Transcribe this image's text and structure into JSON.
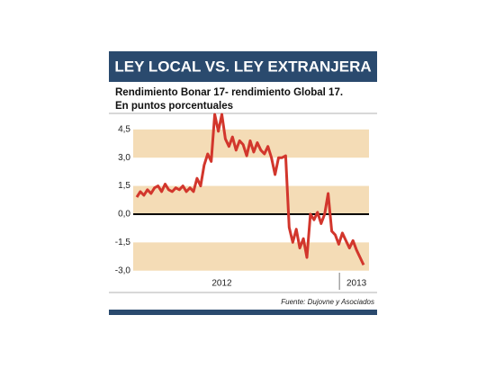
{
  "chart_data": {
    "type": "line",
    "title": "LEY LOCAL VS. LEY EXTRANJERA",
    "subtitle": [
      "Rendimiento Bonar 17- rendimiento Global 17.",
      "En puntos porcentuales"
    ],
    "source": "Fuente: Dujovne y Asociados",
    "categories": [
      null,
      null,
      null,
      null,
      null,
      null,
      null,
      null,
      null,
      null,
      null,
      null,
      null,
      null,
      null,
      null,
      null,
      null,
      null,
      null,
      null,
      null,
      null,
      null,
      "2012",
      null,
      null,
      null,
      null,
      null,
      null,
      null,
      null,
      null,
      null,
      null,
      null,
      null,
      null,
      null,
      null,
      null,
      null,
      null,
      null,
      null,
      null,
      null,
      null,
      null,
      null,
      null,
      null,
      null,
      null,
      null,
      null,
      null,
      null,
      null,
      null,
      null,
      "2013",
      null,
      null
    ],
    "series": [
      {
        "color": "#d2362c",
        "values": [
          0.9,
          1.2,
          1.0,
          1.3,
          1.1,
          1.4,
          1.5,
          1.2,
          1.6,
          1.3,
          1.2,
          1.4,
          1.3,
          1.5,
          1.2,
          1.4,
          1.2,
          1.9,
          1.5,
          2.6,
          3.2,
          2.8,
          5.3,
          4.4,
          5.3,
          4.0,
          3.6,
          4.1,
          3.4,
          3.9,
          3.7,
          3.1,
          3.9,
          3.3,
          3.8,
          3.4,
          3.2,
          3.6,
          3.0,
          2.1,
          3.0,
          3.0,
          3.1,
          -0.7,
          -1.5,
          -0.8,
          -1.8,
          -1.3,
          -2.3,
          0.0,
          -0.3,
          0.1,
          -0.5,
          0.0,
          1.1,
          -0.9,
          -1.1,
          -1.6,
          -1.0,
          -1.4,
          -1.8,
          -1.4,
          -1.9,
          -2.3,
          -2.7
        ]
      }
    ],
    "ylim": [
      -3.3,
      5.4
    ],
    "yticks": [
      {
        "value": 4.5,
        "label": "4,5"
      },
      {
        "value": 3.0,
        "label": "3,0"
      },
      {
        "value": 1.5,
        "label": "1,5"
      },
      {
        "value": 0,
        "label": "0,0"
      },
      {
        "value": -1.5,
        "label": "-1,5"
      },
      {
        "value": -3.0,
        "label": "-3,0"
      }
    ],
    "band_color": "#f4dcb6"
  }
}
